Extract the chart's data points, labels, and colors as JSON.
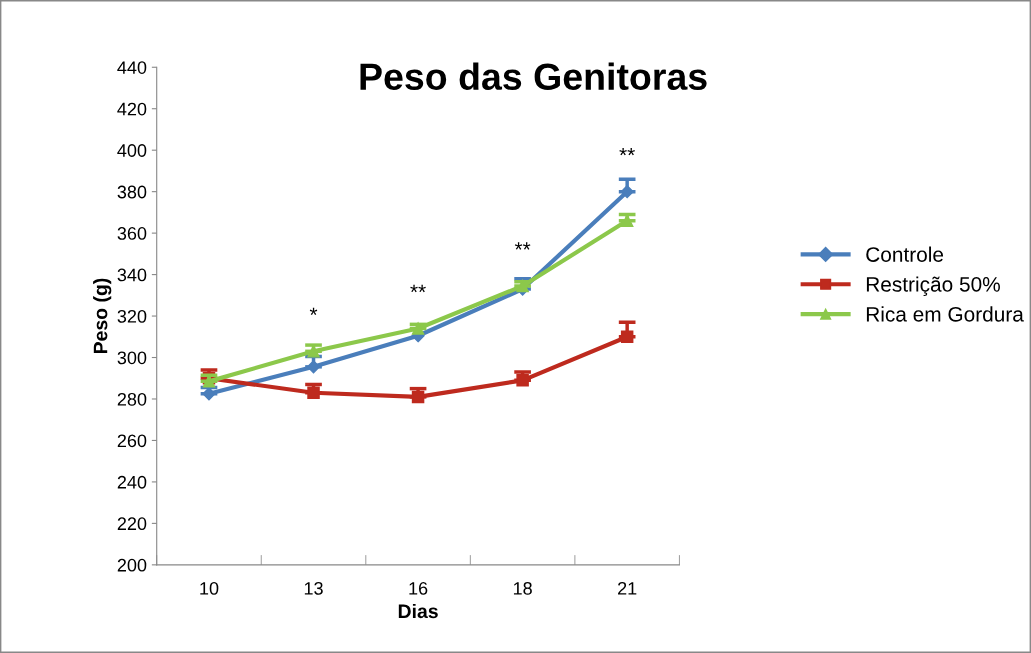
{
  "chart_data": {
    "type": "line",
    "title": "Peso das Genitoras",
    "xlabel": "Dias",
    "ylabel": "Peso (g)",
    "categories": [
      "10",
      "13",
      "16",
      "18",
      "21"
    ],
    "series": [
      {
        "name": "Controle",
        "color": "#4a7ebb",
        "marker": "diamond",
        "values": [
          282.5,
          295.5,
          310.5,
          333,
          380
        ],
        "errors": [
          [
            282.5,
            285.5
          ],
          [
            295.5,
            300.5
          ],
          null,
          [
            333,
            338
          ],
          [
            380,
            386
          ]
        ]
      },
      {
        "name": "Restrição 50%",
        "color": "#be2a1e",
        "marker": "square",
        "values": [
          290,
          283,
          281,
          289,
          310
        ],
        "errors": [
          [
            290,
            294
          ],
          [
            283,
            287
          ],
          [
            281,
            285
          ],
          [
            289,
            293
          ],
          [
            310,
            317
          ]
        ]
      },
      {
        "name": "Rica em Gordura",
        "color": "#8cc84b",
        "marker": "triangle",
        "values": [
          288.5,
          303,
          314,
          334.5,
          366
        ],
        "errors": [
          [
            288.5,
            291.5
          ],
          [
            303,
            306
          ],
          [
            314,
            316
          ],
          [
            334.5,
            336.5
          ],
          [
            366,
            369
          ]
        ]
      }
    ],
    "ylim": [
      200,
      440
    ],
    "yticks": [
      200,
      220,
      240,
      260,
      280,
      300,
      320,
      340,
      360,
      380,
      400,
      420,
      440
    ],
    "annotations": [
      {
        "text": "*",
        "x": "13",
        "y": 303
      },
      {
        "text": "**",
        "x": "16",
        "y": 314
      },
      {
        "text": "**",
        "x": "18",
        "y": 334.5
      },
      {
        "text": "**",
        "x": "21",
        "y": 380
      }
    ],
    "grid": false,
    "legend": "right",
    "line_style": "solid"
  }
}
